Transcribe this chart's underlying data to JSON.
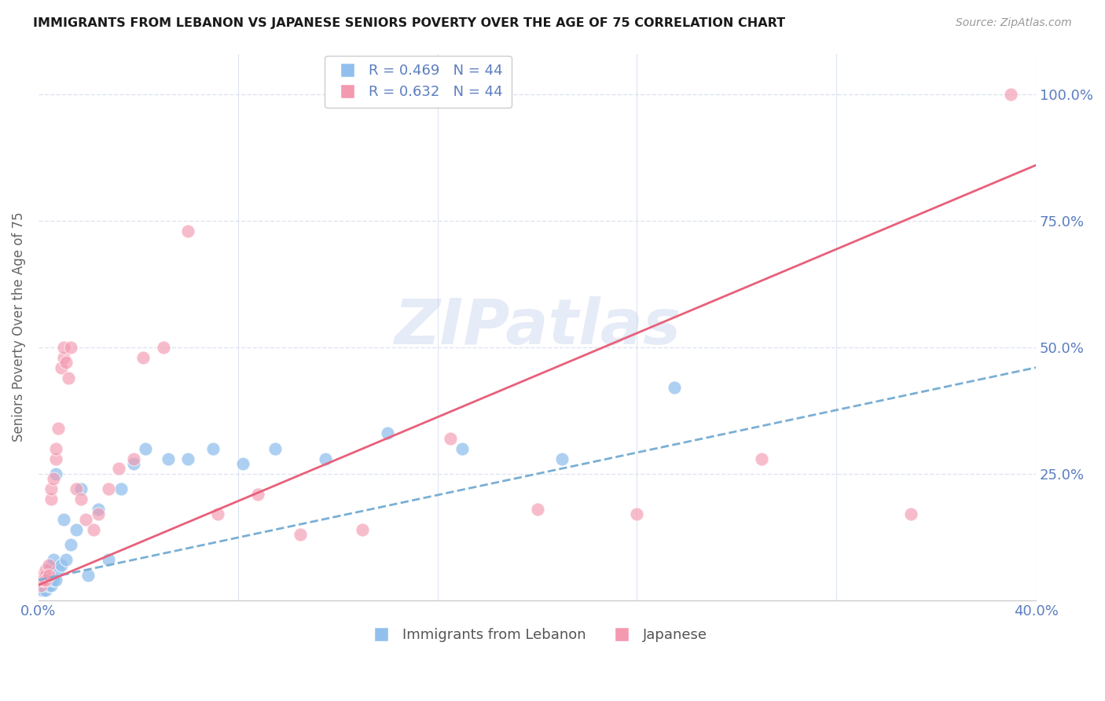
{
  "title": "IMMIGRANTS FROM LEBANON VS JAPANESE SENIORS POVERTY OVER THE AGE OF 75 CORRELATION CHART",
  "source": "Source: ZipAtlas.com",
  "ylabel": "Seniors Poverty Over the Age of 75",
  "legend_blue": "R = 0.469   N = 44",
  "legend_pink": "R = 0.632   N = 44",
  "legend_label_blue": "Immigrants from Lebanon",
  "legend_label_pink": "Japanese",
  "watermark": "ZIPatlas",
  "blue_color": "#92c0ed",
  "pink_color": "#f499b0",
  "trendline_blue_color": "#7aafd4",
  "trendline_pink_color": "#e8607a",
  "axis_label_color": "#5b7dc0",
  "grid_color": "#dde4f0",
  "background_color": "#ffffff",
  "blue_x": [
    0.0005,
    0.001,
    0.001,
    0.0015,
    0.002,
    0.002,
    0.002,
    0.003,
    0.003,
    0.003,
    0.003,
    0.004,
    0.004,
    0.004,
    0.005,
    0.005,
    0.005,
    0.006,
    0.006,
    0.007,
    0.007,
    0.008,
    0.009,
    0.01,
    0.011,
    0.013,
    0.015,
    0.017,
    0.02,
    0.024,
    0.028,
    0.033,
    0.038,
    0.043,
    0.052,
    0.06,
    0.07,
    0.082,
    0.095,
    0.115,
    0.14,
    0.17,
    0.21,
    0.255
  ],
  "blue_y": [
    0.03,
    0.04,
    0.02,
    0.03,
    0.04,
    0.02,
    0.03,
    0.05,
    0.04,
    0.03,
    0.02,
    0.06,
    0.03,
    0.04,
    0.07,
    0.04,
    0.03,
    0.08,
    0.04,
    0.25,
    0.04,
    0.06,
    0.07,
    0.16,
    0.08,
    0.11,
    0.14,
    0.22,
    0.05,
    0.18,
    0.08,
    0.22,
    0.27,
    0.3,
    0.28,
    0.28,
    0.3,
    0.27,
    0.3,
    0.28,
    0.33,
    0.3,
    0.28,
    0.42
  ],
  "pink_x": [
    0.0005,
    0.001,
    0.001,
    0.0015,
    0.002,
    0.002,
    0.003,
    0.003,
    0.003,
    0.004,
    0.004,
    0.005,
    0.005,
    0.006,
    0.007,
    0.007,
    0.008,
    0.009,
    0.01,
    0.01,
    0.011,
    0.012,
    0.013,
    0.015,
    0.017,
    0.019,
    0.022,
    0.024,
    0.028,
    0.032,
    0.038,
    0.042,
    0.05,
    0.06,
    0.072,
    0.088,
    0.105,
    0.13,
    0.165,
    0.2,
    0.24,
    0.29,
    0.35,
    0.39
  ],
  "pink_y": [
    0.04,
    0.03,
    0.05,
    0.04,
    0.05,
    0.04,
    0.06,
    0.05,
    0.04,
    0.07,
    0.05,
    0.2,
    0.22,
    0.24,
    0.28,
    0.3,
    0.34,
    0.46,
    0.48,
    0.5,
    0.47,
    0.44,
    0.5,
    0.22,
    0.2,
    0.16,
    0.14,
    0.17,
    0.22,
    0.26,
    0.28,
    0.48,
    0.5,
    0.73,
    0.17,
    0.21,
    0.13,
    0.14,
    0.32,
    0.18,
    0.17,
    0.28,
    0.17,
    1.0
  ],
  "xmin": 0.0,
  "xmax": 0.4,
  "ymin": 0.0,
  "ymax": 1.08,
  "blue_trend_x": [
    0.0,
    0.4
  ],
  "blue_trend_y": [
    0.04,
    0.46
  ],
  "pink_trend_x": [
    0.0,
    0.4
  ],
  "pink_trend_y": [
    0.03,
    0.86
  ]
}
